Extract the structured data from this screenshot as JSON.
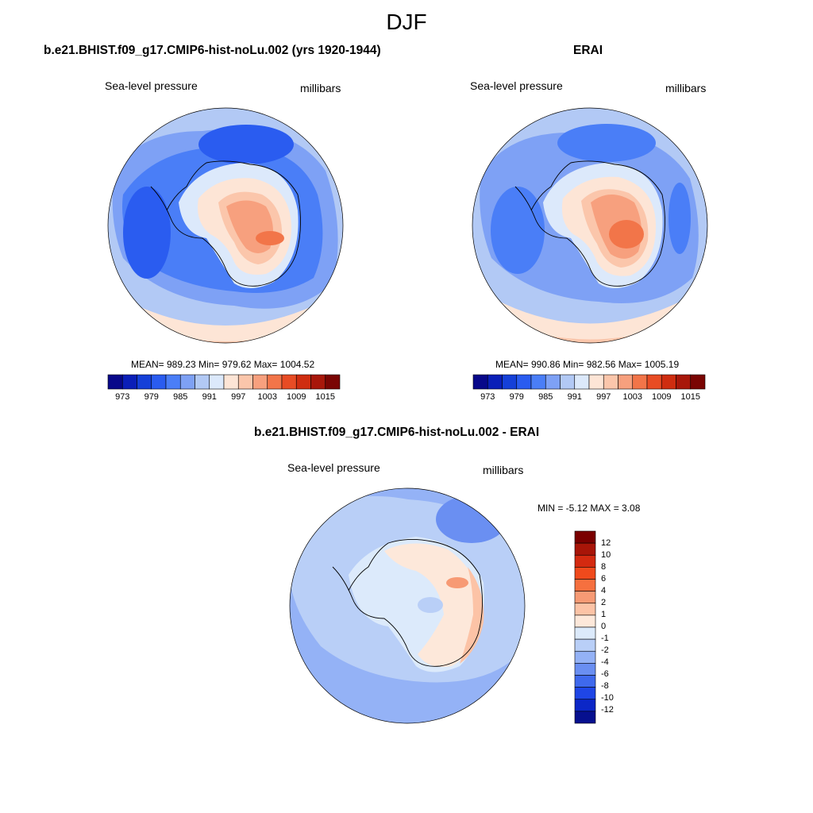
{
  "figure": {
    "title": "DJF"
  },
  "panels": [
    {
      "id": "model",
      "title": "b.e21.BHIST.f09_g17.CMIP6-hist-noLu.002 (yrs 1920-1944)",
      "left_label": "Sea-level pressure",
      "right_label": "millibars",
      "stats": "MEAN= 989.23  Min= 979.62  Max= 1004.52"
    },
    {
      "id": "obs",
      "title": "ERAI",
      "left_label": "Sea-level pressure",
      "right_label": "millibars",
      "stats": "MEAN= 990.86  Min= 982.56  Max= 1005.19"
    },
    {
      "id": "diff",
      "title": "b.e21.BHIST.f09_g17.CMIP6-hist-noLu.002 - ERAI",
      "left_label": "Sea-level pressure",
      "right_label": "millibars",
      "stats": "MIN =  -5.12 MAX =   3.08"
    }
  ],
  "colorbars": {
    "abs": {
      "colors": [
        "#08088a",
        "#0a1fb8",
        "#1540d8",
        "#2a5cf0",
        "#4a7ef7",
        "#7ea1f5",
        "#b2c9f5",
        "#dce9fb",
        "#fde5d6",
        "#fbc6ab",
        "#f7a07e",
        "#f27549",
        "#e84c24",
        "#cf2d10",
        "#a8170a",
        "#7a0503"
      ],
      "labels": [
        "973",
        "979",
        "985",
        "991",
        "997",
        "1003",
        "1009",
        "1015"
      ]
    },
    "diff": {
      "colors": [
        "#7a0000",
        "#a81508",
        "#d42a10",
        "#f04a1c",
        "#f6703f",
        "#f79a74",
        "#fcc3a6",
        "#fde8da",
        "#dceafb",
        "#b9cff7",
        "#94b2f6",
        "#6a8ff2",
        "#3f69ed",
        "#1f46e6",
        "#0c27c7",
        "#06108f"
      ],
      "labels": [
        "12",
        "10",
        "8",
        "6",
        "4",
        "2",
        "1",
        "0",
        "-1",
        "-2",
        "-4",
        "-6",
        "-8",
        "-10",
        "-12"
      ]
    }
  }
}
